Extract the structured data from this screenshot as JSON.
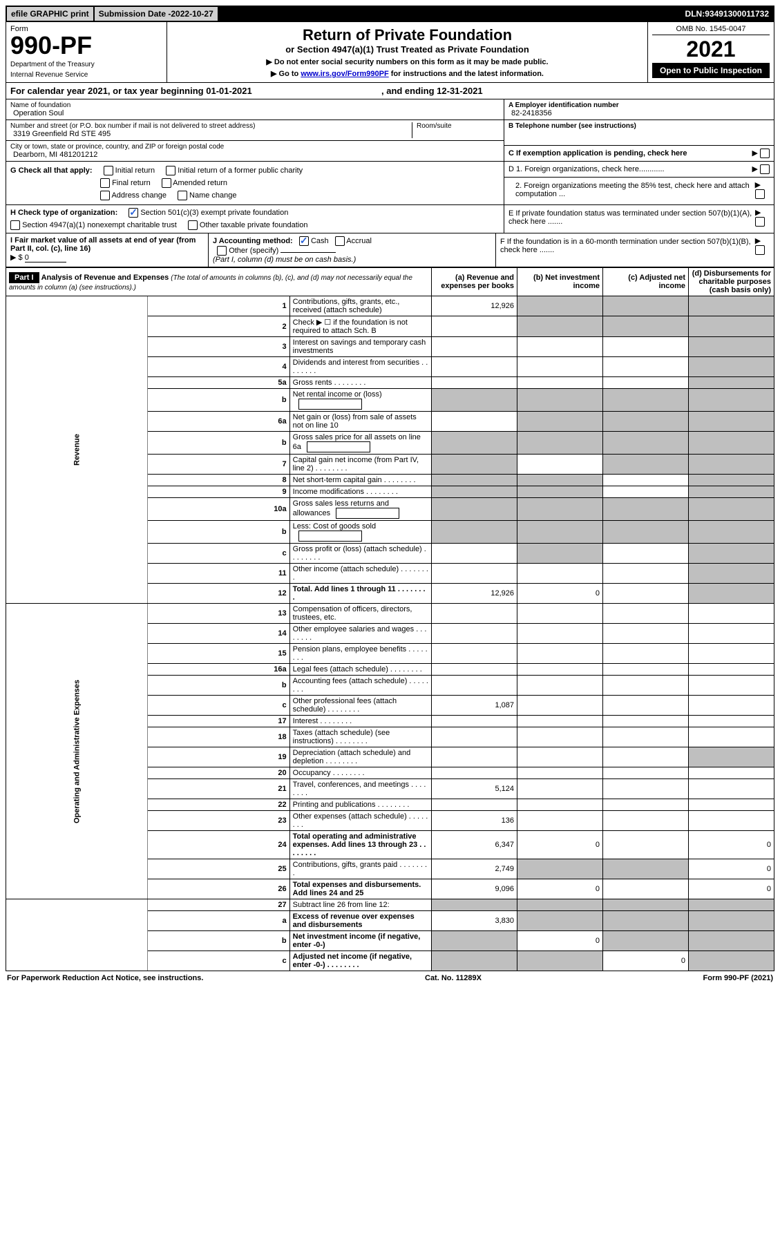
{
  "banner": {
    "print": "efile GRAPHIC print",
    "submission_label": "Submission Date - ",
    "submission_date": "2022-10-27",
    "dln_label": "DLN: ",
    "dln": "93491300011732"
  },
  "header": {
    "form_label": "Form",
    "form_number": "990-PF",
    "dept": "Department of the Treasury",
    "irs": "Internal Revenue Service",
    "title": "Return of Private Foundation",
    "subtitle": "or Section 4947(a)(1) Trust Treated as Private Foundation",
    "instr1": "▶ Do not enter social security numbers on this form as it may be made public.",
    "instr2_prefix": "▶ Go to ",
    "instr2_link": "www.irs.gov/Form990PF",
    "instr2_suffix": " for instructions and the latest information.",
    "omb": "OMB No. 1545-0047",
    "year": "2021",
    "open": "Open to Public Inspection"
  },
  "calendar": {
    "prefix": "For calendar year 2021, or tax year beginning ",
    "begin": "01-01-2021",
    "middle": " , and ending ",
    "end": "12-31-2021"
  },
  "entity": {
    "name_label": "Name of foundation",
    "name": "Operation Soul",
    "street_label": "Number and street (or P.O. box number if mail is not delivered to street address)",
    "street": "3319 Greenfield Rd STE 495",
    "room_label": "Room/suite",
    "city_label": "City or town, state or province, country, and ZIP or foreign postal code",
    "city": "Dearborn, MI  481201212"
  },
  "right_info": {
    "ein_label": "A Employer identification number",
    "ein": "82-2418356",
    "phone_label": "B Telephone number (see instructions)",
    "c_label": "C If exemption application is pending, check here",
    "d1": "D 1. Foreign organizations, check here............",
    "d2": "2. Foreign organizations meeting the 85% test, check here and attach computation ...",
    "e": "E  If private foundation status was terminated under section 507(b)(1)(A), check here .......",
    "f": "F  If the foundation is in a 60-month termination under section 507(b)(1)(B), check here ......."
  },
  "section_g": {
    "label": "G Check all that apply:",
    "opts": [
      "Initial return",
      "Initial return of a former public charity",
      "Final return",
      "Amended return",
      "Address change",
      "Name change"
    ]
  },
  "section_h": {
    "label": "H Check type of organization:",
    "opt1": "Section 501(c)(3) exempt private foundation",
    "opt2": "Section 4947(a)(1) nonexempt charitable trust",
    "opt3": "Other taxable private foundation"
  },
  "section_i": {
    "label": "I Fair market value of all assets at end of year (from Part II, col. (c), line 16)",
    "value_prefix": "▶ $",
    "value": "0",
    "j_label": "J Accounting method:",
    "j_cash": "Cash",
    "j_accrual": "Accrual",
    "j_other": "Other (specify)",
    "j_note": "(Part I, column (d) must be on cash basis.)"
  },
  "part1": {
    "label": "Part I",
    "title": "Analysis of Revenue and Expenses",
    "note": "(The total of amounts in columns (b), (c), and (d) may not necessarily equal the amounts in column (a) (see instructions).)",
    "cols": {
      "a": "(a) Revenue and expenses per books",
      "b": "(b) Net investment income",
      "c": "(c) Adjusted net income",
      "d": "(d) Disbursements for charitable purposes (cash basis only)"
    },
    "side_labels": {
      "revenue": "Revenue",
      "expenses": "Operating and Administrative Expenses"
    },
    "rows": [
      {
        "n": "1",
        "desc": "Contributions, gifts, grants, etc., received (attach schedule)",
        "a": "12,926",
        "b": null,
        "c": null,
        "d": null,
        "b_shade": true,
        "c_shade": true,
        "d_shade": true
      },
      {
        "n": "2",
        "desc": "Check ▶ ☐ if the foundation is not required to attach Sch. B",
        "dots": false,
        "a": null,
        "b": null,
        "c": null,
        "d": null,
        "b_shade": true,
        "c_shade": true,
        "d_shade": true
      },
      {
        "n": "3",
        "desc": "Interest on savings and temporary cash investments",
        "a": "",
        "b": "",
        "c": "",
        "d": null,
        "d_shade": true
      },
      {
        "n": "4",
        "desc": "Dividends and interest from securities",
        "dots": true,
        "a": "",
        "b": "",
        "c": "",
        "d": null,
        "d_shade": true
      },
      {
        "n": "5a",
        "desc": "Gross rents",
        "dots": true,
        "a": "",
        "b": "",
        "c": "",
        "d": null,
        "d_shade": true
      },
      {
        "n": "b",
        "desc": "Net rental income or (loss)",
        "inset": true,
        "a": null,
        "b": null,
        "c": null,
        "d": null,
        "a_shade": true,
        "b_shade": true,
        "c_shade": true,
        "d_shade": true
      },
      {
        "n": "6a",
        "desc": "Net gain or (loss) from sale of assets not on line 10",
        "a": "",
        "b": null,
        "c": null,
        "d": null,
        "b_shade": true,
        "c_shade": true,
        "d_shade": true
      },
      {
        "n": "b",
        "desc": "Gross sales price for all assets on line 6a",
        "inset": true,
        "a": null,
        "b": null,
        "c": null,
        "d": null,
        "a_shade": true,
        "b_shade": true,
        "c_shade": true,
        "d_shade": true
      },
      {
        "n": "7",
        "desc": "Capital gain net income (from Part IV, line 2)",
        "dots": true,
        "a": null,
        "b": "",
        "c": null,
        "d": null,
        "a_shade": true,
        "c_shade": true,
        "d_shade": true
      },
      {
        "n": "8",
        "desc": "Net short-term capital gain",
        "dots": true,
        "a": null,
        "b": null,
        "c": "",
        "d": null,
        "a_shade": true,
        "b_shade": true,
        "d_shade": true
      },
      {
        "n": "9",
        "desc": "Income modifications",
        "dots": true,
        "a": null,
        "b": null,
        "c": "",
        "d": null,
        "a_shade": true,
        "b_shade": true,
        "d_shade": true
      },
      {
        "n": "10a",
        "desc": "Gross sales less returns and allowances",
        "inset": true,
        "a": null,
        "b": null,
        "c": null,
        "d": null,
        "a_shade": true,
        "b_shade": true,
        "c_shade": true,
        "d_shade": true
      },
      {
        "n": "b",
        "desc": "Less: Cost of goods sold",
        "dots": true,
        "inset": true,
        "a": null,
        "b": null,
        "c": null,
        "d": null,
        "a_shade": true,
        "b_shade": true,
        "c_shade": true,
        "d_shade": true
      },
      {
        "n": "c",
        "desc": "Gross profit or (loss) (attach schedule)",
        "dots": true,
        "a": "",
        "b": null,
        "c": "",
        "d": null,
        "b_shade": true,
        "d_shade": true
      },
      {
        "n": "11",
        "desc": "Other income (attach schedule)",
        "dots": true,
        "a": "",
        "b": "",
        "c": "",
        "d": null,
        "d_shade": true
      },
      {
        "n": "12",
        "desc": "Total. Add lines 1 through 11",
        "dots": true,
        "bold": true,
        "a": "12,926",
        "b": "0",
        "c": "",
        "d": null,
        "d_shade": true
      }
    ],
    "exp_rows": [
      {
        "n": "13",
        "desc": "Compensation of officers, directors, trustees, etc.",
        "a": "",
        "b": "",
        "c": "",
        "d": ""
      },
      {
        "n": "14",
        "desc": "Other employee salaries and wages",
        "dots": true,
        "a": "",
        "b": "",
        "c": "",
        "d": ""
      },
      {
        "n": "15",
        "desc": "Pension plans, employee benefits",
        "dots": true,
        "a": "",
        "b": "",
        "c": "",
        "d": ""
      },
      {
        "n": "16a",
        "desc": "Legal fees (attach schedule)",
        "dots": true,
        "a": "",
        "b": "",
        "c": "",
        "d": ""
      },
      {
        "n": "b",
        "desc": "Accounting fees (attach schedule)",
        "dots": true,
        "a": "",
        "b": "",
        "c": "",
        "d": ""
      },
      {
        "n": "c",
        "desc": "Other professional fees (attach schedule)",
        "dots": true,
        "a": "1,087",
        "b": "",
        "c": "",
        "d": ""
      },
      {
        "n": "17",
        "desc": "Interest",
        "dots": true,
        "a": "",
        "b": "",
        "c": "",
        "d": ""
      },
      {
        "n": "18",
        "desc": "Taxes (attach schedule) (see instructions)",
        "dots": true,
        "a": "",
        "b": "",
        "c": "",
        "d": ""
      },
      {
        "n": "19",
        "desc": "Depreciation (attach schedule) and depletion",
        "dots": true,
        "a": "",
        "b": "",
        "c": "",
        "d": null,
        "d_shade": true
      },
      {
        "n": "20",
        "desc": "Occupancy",
        "dots": true,
        "a": "",
        "b": "",
        "c": "",
        "d": ""
      },
      {
        "n": "21",
        "desc": "Travel, conferences, and meetings",
        "dots": true,
        "a": "5,124",
        "b": "",
        "c": "",
        "d": ""
      },
      {
        "n": "22",
        "desc": "Printing and publications",
        "dots": true,
        "a": "",
        "b": "",
        "c": "",
        "d": ""
      },
      {
        "n": "23",
        "desc": "Other expenses (attach schedule)",
        "dots": true,
        "a": "136",
        "b": "",
        "c": "",
        "d": ""
      },
      {
        "n": "24",
        "desc": "Total operating and administrative expenses. Add lines 13 through 23",
        "dots": true,
        "bold": true,
        "a": "6,347",
        "b": "0",
        "c": "",
        "d": "0"
      },
      {
        "n": "25",
        "desc": "Contributions, gifts, grants paid",
        "dots": true,
        "a": "2,749",
        "b": null,
        "c": null,
        "d": "0",
        "b_shade": true,
        "c_shade": true
      },
      {
        "n": "26",
        "desc": "Total expenses and disbursements. Add lines 24 and 25",
        "bold": true,
        "a": "9,096",
        "b": "0",
        "c": "",
        "d": "0"
      }
    ],
    "final_rows": [
      {
        "n": "27",
        "desc": "Subtract line 26 from line 12:",
        "a": null,
        "b": null,
        "c": null,
        "d": null,
        "a_shade": true,
        "b_shade": true,
        "c_shade": true,
        "d_shade": true
      },
      {
        "n": "a",
        "desc": "Excess of revenue over expenses and disbursements",
        "bold": true,
        "a": "3,830",
        "b": null,
        "c": null,
        "d": null,
        "b_shade": true,
        "c_shade": true,
        "d_shade": true
      },
      {
        "n": "b",
        "desc": "Net investment income (if negative, enter -0-)",
        "bold": true,
        "a": null,
        "b": "0",
        "c": null,
        "d": null,
        "a_shade": true,
        "c_shade": true,
        "d_shade": true
      },
      {
        "n": "c",
        "desc": "Adjusted net income (if negative, enter -0-)",
        "dots": true,
        "bold": true,
        "a": null,
        "b": null,
        "c": "0",
        "d": null,
        "a_shade": true,
        "b_shade": true,
        "d_shade": true
      }
    ]
  },
  "footer": {
    "left": "For Paperwork Reduction Act Notice, see instructions.",
    "mid": "Cat. No. 11289X",
    "right": "Form 990-PF (2021)"
  }
}
